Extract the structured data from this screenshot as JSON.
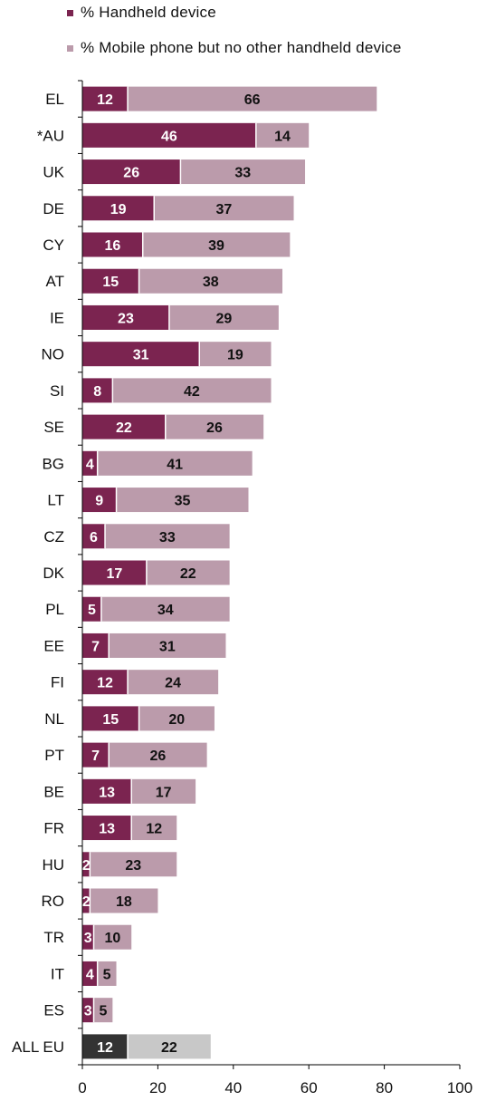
{
  "colors": {
    "handheld": "#7b2450",
    "mobile": "#bb9bab",
    "all_eu_handheld": "#333333",
    "all_eu_mobile": "#c8c8c8"
  },
  "chart_data": {
    "type": "bar",
    "orientation": "horizontal",
    "stacked": true,
    "categories": [
      "EL",
      "*AU",
      "UK",
      "DE",
      "CY",
      "AT",
      "IE",
      "NO",
      "SI",
      "SE",
      "BG",
      "LT",
      "CZ",
      "DK",
      "PL",
      "EE",
      "FI",
      "NL",
      "PT",
      "BE",
      "FR",
      "HU",
      "RO",
      "TR",
      "IT",
      "ES",
      "ALL EU"
    ],
    "series": [
      {
        "name": "% Handheld device",
        "values": [
          12,
          46,
          26,
          19,
          16,
          15,
          23,
          31,
          8,
          22,
          4,
          9,
          6,
          17,
          5,
          7,
          12,
          15,
          7,
          13,
          13,
          2,
          2,
          3,
          4,
          3,
          12
        ]
      },
      {
        "name": "% Mobile phone but no other handheld device",
        "values": [
          66,
          14,
          33,
          37,
          39,
          38,
          29,
          19,
          42,
          26,
          41,
          35,
          33,
          22,
          34,
          31,
          24,
          20,
          26,
          17,
          12,
          23,
          18,
          10,
          5,
          5,
          22
        ]
      }
    ],
    "xlim": [
      0,
      100
    ],
    "xticks": [
      "0",
      "20",
      "40",
      "60",
      "80",
      "100"
    ],
    "legend_position": "top-left"
  }
}
